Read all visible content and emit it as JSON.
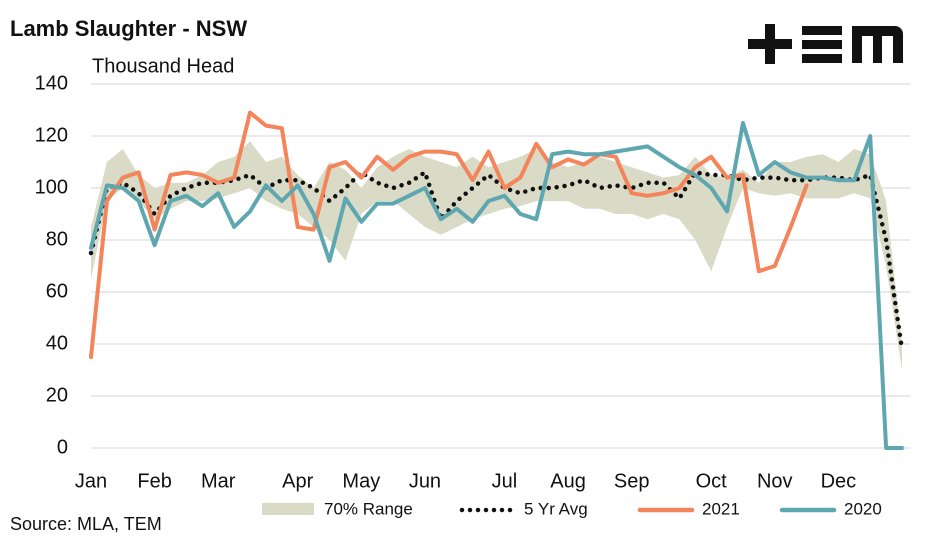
{
  "chart_data": {
    "type": "line",
    "title": "Lamb Slaughter - NSW",
    "subtitle": "Thousand Head",
    "source": "Source: MLA, TEM",
    "categories": [
      "Jan",
      null,
      null,
      null,
      "Feb",
      null,
      null,
      null,
      "Mar",
      null,
      null,
      null,
      null,
      "Apr",
      null,
      null,
      null,
      "May",
      null,
      null,
      null,
      "Jun",
      null,
      null,
      null,
      null,
      "Jul",
      null,
      null,
      null,
      "Aug",
      null,
      null,
      null,
      "Sep",
      null,
      null,
      null,
      null,
      "Oct",
      null,
      null,
      null,
      "Nov",
      null,
      null,
      null,
      "Dec",
      null,
      null,
      null,
      null
    ],
    "ylim": [
      0,
      140
    ],
    "yticks": [
      0,
      20,
      40,
      60,
      80,
      100,
      120,
      140
    ],
    "grid": true,
    "range": {
      "name": "70% Range",
      "color": "#d9dbc6",
      "upper": [
        85,
        110,
        115,
        105,
        100,
        102,
        102,
        105,
        110,
        112,
        118,
        110,
        112,
        105,
        100,
        110,
        107,
        100,
        108,
        112,
        115,
        112,
        110,
        108,
        112,
        108,
        110,
        112,
        115,
        110,
        108,
        110,
        112,
        110,
        108,
        106,
        104,
        105,
        112,
        105,
        104,
        107,
        102,
        110,
        110,
        112,
        113,
        110,
        115,
        113,
        95,
        40
      ],
      "lower": [
        65,
        95,
        100,
        95,
        88,
        92,
        95,
        95,
        96,
        98,
        100,
        95,
        92,
        90,
        85,
        80,
        72,
        90,
        95,
        95,
        90,
        85,
        82,
        85,
        88,
        90,
        92,
        93,
        95,
        95,
        95,
        92,
        92,
        90,
        90,
        88,
        90,
        88,
        80,
        68,
        85,
        100,
        98,
        97,
        98,
        96,
        96,
        96,
        98,
        96,
        70,
        30
      ]
    },
    "series": [
      {
        "name": "5 Yr Avg",
        "color": "#111111",
        "dotted": true,
        "values": [
          75,
          100,
          102,
          98,
          90,
          97,
          100,
          102,
          102,
          103,
          105,
          100,
          103,
          103,
          100,
          95,
          100,
          106,
          102,
          100,
          102,
          106,
          88,
          95,
          100,
          105,
          100,
          98,
          100,
          100,
          101,
          103,
          100,
          101,
          100,
          102,
          102,
          96,
          106,
          105,
          105,
          103,
          104,
          104,
          103,
          103,
          104,
          104,
          103,
          105,
          80,
          38
        ]
      },
      {
        "name": "2021",
        "color": "#f4845a",
        "values": [
          35,
          95,
          104,
          106,
          84,
          105,
          106,
          105,
          102,
          104,
          129,
          124,
          123,
          85,
          84,
          108,
          110,
          104,
          112,
          107,
          112,
          114,
          114,
          113,
          103,
          114,
          100,
          104,
          117,
          108,
          111,
          109,
          113,
          112,
          98,
          97,
          98,
          100,
          108,
          112,
          104,
          105,
          68,
          70,
          85,
          101,
          null,
          null,
          null,
          null,
          null,
          null
        ]
      },
      {
        "name": "2020",
        "color": "#5fa7b0",
        "values": [
          77,
          101,
          100,
          95,
          78,
          95,
          97,
          93,
          98,
          85,
          91,
          101,
          95,
          101,
          90,
          72,
          96,
          87,
          94,
          94,
          97,
          100,
          88,
          92,
          87,
          95,
          97,
          90,
          88,
          113,
          114,
          113,
          113,
          114,
          115,
          116,
          112,
          108,
          105,
          100,
          91,
          125,
          105,
          110,
          106,
          104,
          104,
          103,
          103,
          120,
          0,
          0
        ]
      }
    ]
  }
}
